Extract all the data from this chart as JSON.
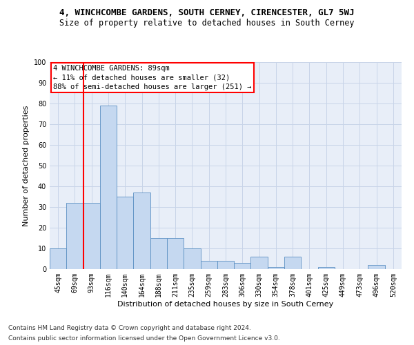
{
  "title_line1": "4, WINCHCOMBE GARDENS, SOUTH CERNEY, CIRENCESTER, GL7 5WJ",
  "title_line2": "Size of property relative to detached houses in South Cerney",
  "xlabel": "Distribution of detached houses by size in South Cerney",
  "ylabel": "Number of detached properties",
  "categories": [
    "45sqm",
    "69sqm",
    "93sqm",
    "116sqm",
    "140sqm",
    "164sqm",
    "188sqm",
    "211sqm",
    "235sqm",
    "259sqm",
    "283sqm",
    "306sqm",
    "330sqm",
    "354sqm",
    "378sqm",
    "401sqm",
    "425sqm",
    "449sqm",
    "473sqm",
    "496sqm",
    "520sqm"
  ],
  "values": [
    10,
    32,
    32,
    79,
    35,
    37,
    15,
    15,
    10,
    4,
    4,
    3,
    6,
    1,
    6,
    0,
    1,
    0,
    0,
    2,
    0
  ],
  "bar_color": "#c5d8f0",
  "bar_edge_color": "#5a8fc2",
  "vline_color": "red",
  "vline_x": 1.5,
  "annotation_text": "4 WINCHCOMBE GARDENS: 89sqm\n← 11% of detached houses are smaller (32)\n88% of semi-detached houses are larger (251) →",
  "annotation_box_color": "red",
  "annotation_fontsize": 7.5,
  "ylim": [
    0,
    100
  ],
  "yticks": [
    0,
    10,
    20,
    30,
    40,
    50,
    60,
    70,
    80,
    90,
    100
  ],
  "grid_color": "#c8d4e8",
  "bg_color": "#e8eef8",
  "footer_line1": "Contains HM Land Registry data © Crown copyright and database right 2024.",
  "footer_line2": "Contains public sector information licensed under the Open Government Licence v3.0.",
  "title_fontsize": 9,
  "subtitle_fontsize": 8.5,
  "xlabel_fontsize": 8,
  "ylabel_fontsize": 8,
  "tick_fontsize": 7,
  "footer_fontsize": 6.5
}
